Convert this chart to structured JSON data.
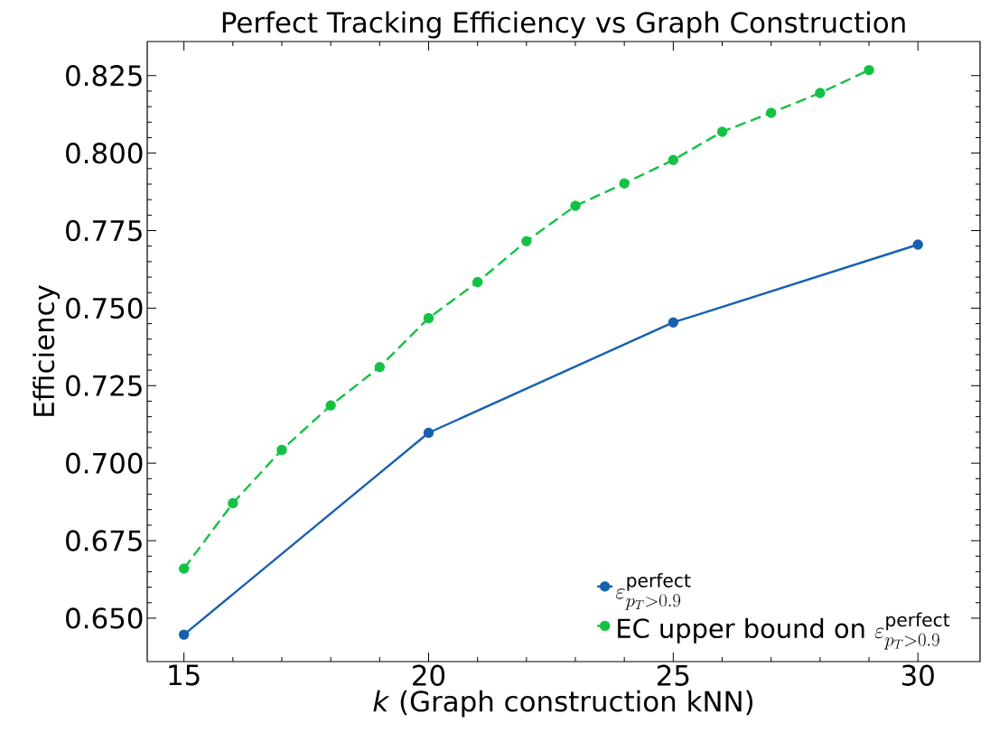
{
  "chart_data": {
    "type": "line",
    "title": "Perfect Tracking Efficiency vs Graph Construction",
    "xlabel": "*k* (Graph construction kNN)",
    "ylabel": "Efficiency",
    "series": [
      {
        "name": "\\varepsilon^{\\text{perfect}}_{p_T > 0.9}",
        "color": "#1761b0",
        "x": [
          15,
          20,
          25,
          30
        ],
        "values": [
          0.6447,
          0.7098,
          0.7454,
          0.7705
        ],
        "line_style": "solid"
      },
      {
        "name": "\\text{EC upper bound on }\\varepsilon^{\\text{perfect}}_{p_T > 0.9}",
        "color": "#13c244",
        "x": [
          15,
          16,
          17,
          18,
          19,
          20,
          21,
          22,
          23,
          24,
          25,
          26,
          27,
          28,
          29
        ],
        "values": [
          0.666,
          0.6871,
          0.7043,
          0.7186,
          0.731,
          0.7468,
          0.7584,
          0.7716,
          0.783,
          0.7902,
          0.7978,
          0.8069,
          0.813,
          0.8194,
          0.8268
        ],
        "line_style": "dashed"
      }
    ],
    "xlim": [
      14.25,
      31.27
    ],
    "ylim": [
      0.636,
      0.836
    ],
    "xticks": [
      15,
      20,
      25,
      30
    ],
    "yticks": [
      {
        "value": 0.65,
        "label": "0.650"
      },
      {
        "value": 0.675,
        "label": "0.675"
      },
      {
        "value": 0.7,
        "label": "0.700"
      },
      {
        "value": 0.725,
        "label": "0.725"
      },
      {
        "value": 0.75,
        "label": "0.750"
      },
      {
        "value": 0.775,
        "label": "0.775"
      },
      {
        "value": 0.8,
        "label": "0.800"
      },
      {
        "value": 0.825,
        "label": "0.825"
      }
    ],
    "marker": "circle",
    "legend": "bottom right"
  }
}
